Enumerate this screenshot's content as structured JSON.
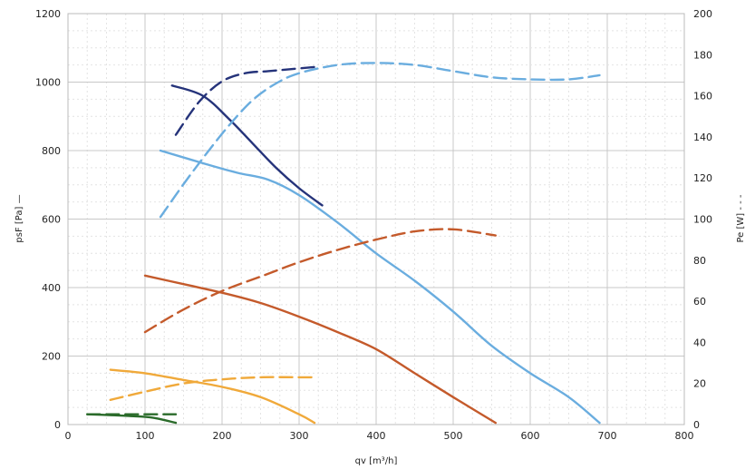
{
  "chart_data": {
    "type": "line",
    "xlabel": "qv [m³/h]",
    "ylabel_left": "psF [Pa] —",
    "ylabel_right": "Pe [W] - - -",
    "xlim": [
      0,
      800
    ],
    "ylim_left": [
      0,
      1200
    ],
    "ylim_right": [
      0,
      200
    ],
    "x_ticks": [
      "0",
      "100",
      "200",
      "300",
      "400",
      "500",
      "600",
      "700",
      "800"
    ],
    "y_left_ticks": [
      "0",
      "200",
      "400",
      "600",
      "800",
      "1000",
      "1200"
    ],
    "y_right_ticks": [
      "0",
      "20",
      "40",
      "60",
      "80",
      "100",
      "120",
      "140",
      "160",
      "180",
      "200"
    ],
    "grid": true,
    "series": [
      {
        "color": "#25337a",
        "axis": "left",
        "style": "solid",
        "x": [
          135,
          175,
          210,
          240,
          270,
          300,
          330
        ],
        "y": [
          990,
          960,
          890,
          820,
          750,
          690,
          640
        ]
      },
      {
        "color": "#25337a",
        "axis": "right",
        "style": "dashed",
        "x": [
          140,
          170,
          200,
          230,
          260,
          290,
          320
        ],
        "y": [
          141,
          157,
          167,
          171,
          172,
          173,
          174
        ]
      },
      {
        "color": "#6aaddf",
        "axis": "left",
        "style": "solid",
        "x": [
          120,
          180,
          220,
          260,
          300,
          350,
          400,
          450,
          500,
          550,
          600,
          650,
          690
        ],
        "y": [
          800,
          760,
          735,
          715,
          670,
          590,
          500,
          420,
          330,
          230,
          150,
          80,
          5
        ]
      },
      {
        "color": "#6aaddf",
        "axis": "right",
        "style": "dashed",
        "x": [
          120,
          150,
          180,
          210,
          240,
          270,
          300,
          350,
          400,
          450,
          500,
          550,
          600,
          650,
          690
        ],
        "y": [
          101,
          117,
          132,
          146,
          158,
          166,
          171,
          175,
          176,
          175,
          172,
          169,
          168,
          168,
          170
        ]
      },
      {
        "color": "#c45a2b",
        "axis": "left",
        "style": "solid",
        "x": [
          100,
          150,
          200,
          250,
          300,
          350,
          400,
          450,
          500,
          555
        ],
        "y": [
          435,
          410,
          385,
          355,
          315,
          270,
          220,
          150,
          80,
          5
        ]
      },
      {
        "color": "#c45a2b",
        "axis": "right",
        "style": "dashed",
        "x": [
          100,
          150,
          200,
          250,
          300,
          350,
          400,
          450,
          500,
          555
        ],
        "y": [
          45,
          56,
          65,
          72,
          79,
          85,
          90,
          94,
          95,
          92
        ]
      },
      {
        "color": "#f0a93a",
        "axis": "left",
        "style": "solid",
        "x": [
          55,
          100,
          150,
          200,
          250,
          300,
          320
        ],
        "y": [
          160,
          150,
          130,
          110,
          80,
          30,
          5
        ]
      },
      {
        "color": "#f0a93a",
        "axis": "right",
        "style": "dashed",
        "x": [
          55,
          100,
          150,
          200,
          250,
          300,
          320
        ],
        "y": [
          12,
          16,
          20,
          22,
          23,
          23,
          23
        ]
      },
      {
        "color": "#2a6b2a",
        "axis": "left",
        "style": "solid",
        "x": [
          25,
          50,
          80,
          110,
          140
        ],
        "y": [
          30,
          28,
          25,
          20,
          5
        ]
      },
      {
        "color": "#2a6b2a",
        "axis": "right",
        "style": "dashed",
        "x": [
          25,
          60,
          100,
          140
        ],
        "y": [
          5,
          5,
          5,
          5
        ]
      }
    ]
  }
}
